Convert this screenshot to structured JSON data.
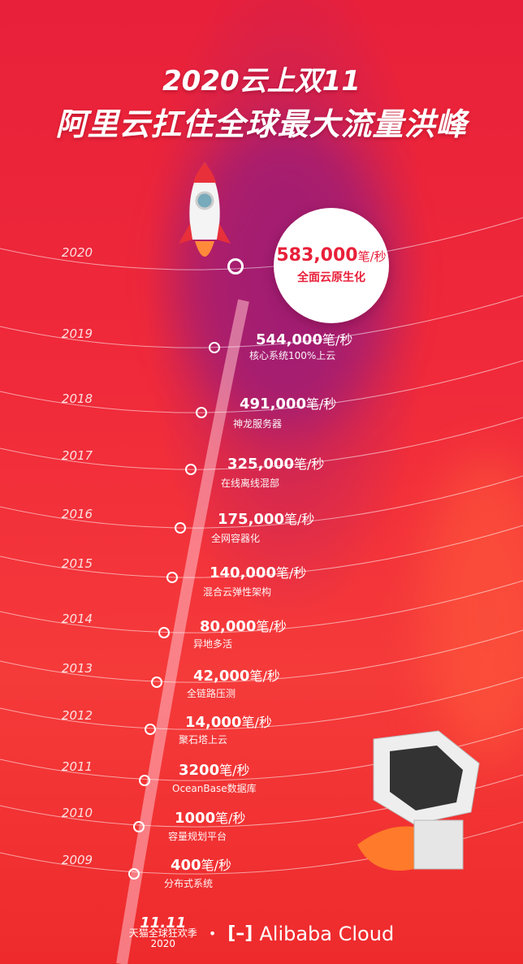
{
  "title": {
    "line1": "2020云上双11",
    "line2": "阿里云扛住全球最大流量洪峰"
  },
  "highlight": {
    "year": "2020",
    "value": "583,000",
    "unit": "笔/秒",
    "caption": "全面云原生化"
  },
  "timeline": [
    {
      "year": "2019",
      "value": "544,000",
      "unit": "笔/秒",
      "caption": "核心系统100%上云"
    },
    {
      "year": "2018",
      "value": "491,000",
      "unit": "笔/秒",
      "caption": "神龙服务器"
    },
    {
      "year": "2017",
      "value": "325,000",
      "unit": "笔/秒",
      "caption": "在线离线混部"
    },
    {
      "year": "2016",
      "value": "175,000",
      "unit": "笔/秒",
      "caption": "全网容器化"
    },
    {
      "year": "2015",
      "value": "140,000",
      "unit": "笔/秒",
      "caption": "混合云弹性架构"
    },
    {
      "year": "2014",
      "value": "80,000",
      "unit": "笔/秒",
      "caption": "异地多活"
    },
    {
      "year": "2013",
      "value": "42,000",
      "unit": "笔/秒",
      "caption": "全链路压测"
    },
    {
      "year": "2012",
      "value": "14,000",
      "unit": "笔/秒",
      "caption": "聚石塔上云"
    },
    {
      "year": "2011",
      "value": "3200",
      "unit": "笔/秒",
      "caption": "OceanBase数据库"
    },
    {
      "year": "2010",
      "value": "1000",
      "unit": "笔/秒",
      "caption": "容量规划平台"
    },
    {
      "year": "2009",
      "value": "400",
      "unit": "笔/秒",
      "caption": "分布式系统"
    }
  ],
  "footer": {
    "tmall_mark": "11.11",
    "tmall_name": "天猫全球狂欢季",
    "tmall_year": "2020",
    "separator": "•",
    "cloud_logo": "[–]",
    "cloud_name": "Alibaba Cloud"
  },
  "colors": {
    "background": "#ee2a3a",
    "accent": "#e8203a",
    "text": "#ffffff"
  }
}
